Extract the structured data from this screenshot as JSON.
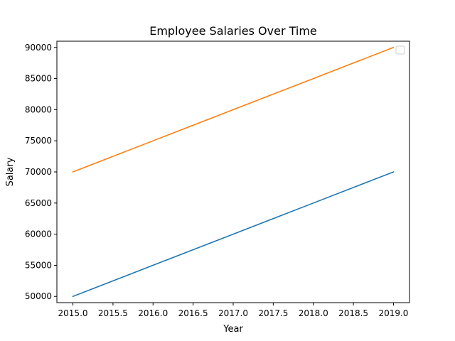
{
  "chart_data": {
    "type": "line",
    "title": "Employee Salaries Over Time",
    "xlabel": "Year",
    "ylabel": "Salary",
    "x": [
      2015,
      2016,
      2017,
      2018,
      2019
    ],
    "xlim": [
      2014.8,
      2019.2
    ],
    "ylim": [
      49000,
      91000
    ],
    "xticks": [
      2015.0,
      2015.5,
      2016.0,
      2016.5,
      2017.0,
      2017.5,
      2018.0,
      2018.5,
      2019.0
    ],
    "xtick_labels": [
      "2015.0",
      "2015.5",
      "2016.0",
      "2016.5",
      "2017.0",
      "2017.5",
      "2018.0",
      "2018.5",
      "2019.0"
    ],
    "yticks": [
      50000,
      55000,
      60000,
      65000,
      70000,
      75000,
      80000,
      85000,
      90000
    ],
    "ytick_labels": [
      "50000",
      "55000",
      "60000",
      "65000",
      "70000",
      "75000",
      "80000",
      "85000",
      "90000"
    ],
    "grid": false,
    "legend": {
      "placement": "top-right",
      "entries": []
    },
    "series": [
      {
        "values": [
          50000,
          55000,
          60000,
          65000,
          70000
        ],
        "color": "#1f77b4"
      },
      {
        "values": [
          70000,
          75000,
          80000,
          85000,
          90000
        ],
        "color": "#ff7f0e"
      }
    ]
  }
}
